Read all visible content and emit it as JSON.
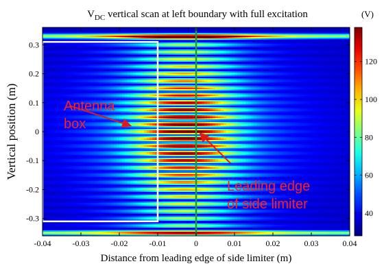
{
  "chart_data": {
    "type": "heatmap",
    "title": {
      "prefix": "V",
      "subscript": "DC",
      "rest": " vertical scan at left boundary with full excitation"
    },
    "xlabel": "Distance from leading edge of side limiter (m)",
    "ylabel": "Vertical position (m)",
    "xlim": [
      -0.04,
      0.04
    ],
    "ylim": [
      -0.36,
      0.36
    ],
    "x_ticks": [
      -0.04,
      -0.03,
      -0.02,
      -0.01,
      0,
      0.01,
      0.02,
      0.03,
      0.04
    ],
    "x_tick_labels": [
      "-0.04",
      "-0.03",
      "-0.02",
      "-0.01",
      "0",
      "0.01",
      "0.02",
      "0.03",
      "0.04"
    ],
    "y_ticks": [
      0.3,
      0.2,
      0.1,
      0,
      -0.1,
      -0.2,
      -0.3
    ],
    "y_tick_labels": [
      "0.3",
      "0.2",
      "0.1",
      "0",
      "-0.1",
      "-0.2",
      "-0.3"
    ],
    "colorbar": {
      "unit": "(V)",
      "ticks": [
        120,
        100,
        80,
        60,
        40
      ],
      "tick_labels": [
        "120",
        "100",
        "80",
        "60",
        "40"
      ],
      "range": [
        28,
        138
      ],
      "colormap": "jet"
    },
    "field": {
      "peak_x": -0.003,
      "fringe_y_start": -0.33,
      "fringe_y_end": 0.33,
      "fringe_spacing": 0.025,
      "strong_bands_y": [
        -0.35,
        0.33
      ],
      "peak_value": 138,
      "background_value": 28
    },
    "antenna_box": {
      "x_left": -0.04,
      "x_right": -0.01,
      "y_bottom": -0.31,
      "y_top": 0.31,
      "color": "#ffffff"
    },
    "limiter_line": {
      "x": 0,
      "color": "#1e9a3a"
    },
    "annotations": [
      {
        "id": "antenna",
        "lines": [
          "Antenna",
          "box"
        ],
        "color": "#ff2020",
        "arrow_from": [
          -0.033,
          0.09
        ],
        "arrow_to": [
          -0.017,
          0.02
        ]
      },
      {
        "id": "limiter",
        "lines": [
          "Leading edge",
          "of side limiter"
        ],
        "color": "#ff2020",
        "arrow_from": [
          0.009,
          -0.11
        ],
        "arrow_to": [
          0.001,
          -0.005
        ]
      }
    ]
  }
}
